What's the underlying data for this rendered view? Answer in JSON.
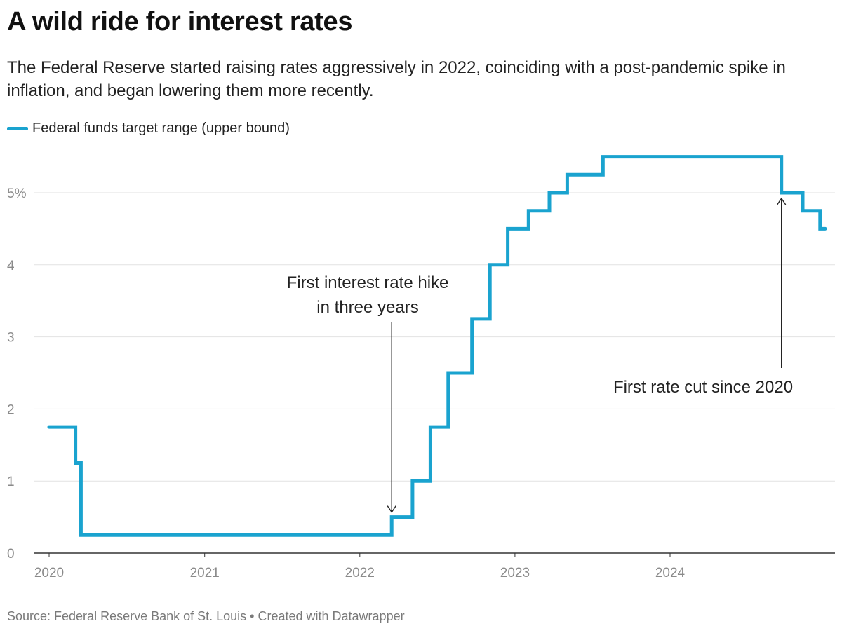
{
  "header": {
    "title": "A wild ride for interest rates",
    "subtitle": "The Federal Reserve started raising rates aggressively in 2022, coinciding with a post-pandemic spike in inflation, and began lowering them more recently."
  },
  "footer": {
    "source": "Source: Federal Reserve Bank of St. Louis • Created with Datawrapper"
  },
  "colors": {
    "series": "#1aa3cf",
    "grid": "#e2e2e2",
    "axis": "#333333",
    "tick_label": "#8a8a8a",
    "annotation": "#222222"
  },
  "chart_data": {
    "type": "line",
    "interpolation": "step-after",
    "title": "A wild ride for interest rates",
    "xlim": [
      "2020-01-01",
      "2024-12-31"
    ],
    "ylim": [
      0,
      5.6
    ],
    "grid": true,
    "legend_position": "top-left",
    "x_ticks": [
      {
        "value": "2020-01-01",
        "label": "2020"
      },
      {
        "value": "2021-01-01",
        "label": "2021"
      },
      {
        "value": "2022-01-01",
        "label": "2022"
      },
      {
        "value": "2023-01-01",
        "label": "2023"
      },
      {
        "value": "2024-01-01",
        "label": "2024"
      }
    ],
    "y_ticks": [
      {
        "value": 0,
        "label": "0"
      },
      {
        "value": 1,
        "label": "1"
      },
      {
        "value": 2,
        "label": "2"
      },
      {
        "value": 3,
        "label": "3"
      },
      {
        "value": 4,
        "label": "4"
      },
      {
        "value": 5,
        "label": "5%"
      }
    ],
    "series": [
      {
        "name": "Federal funds target range (upper bound)",
        "points": [
          {
            "x": "2020-01-01",
            "y": 1.75
          },
          {
            "x": "2020-03-03",
            "y": 1.25
          },
          {
            "x": "2020-03-16",
            "y": 0.25
          },
          {
            "x": "2022-03-17",
            "y": 0.5
          },
          {
            "x": "2022-05-05",
            "y": 1.0
          },
          {
            "x": "2022-06-16",
            "y": 1.75
          },
          {
            "x": "2022-07-28",
            "y": 2.5
          },
          {
            "x": "2022-09-22",
            "y": 3.25
          },
          {
            "x": "2022-11-03",
            "y": 4.0
          },
          {
            "x": "2022-12-15",
            "y": 4.5
          },
          {
            "x": "2023-02-02",
            "y": 4.75
          },
          {
            "x": "2023-03-23",
            "y": 5.0
          },
          {
            "x": "2023-05-04",
            "y": 5.25
          },
          {
            "x": "2023-07-27",
            "y": 5.5
          },
          {
            "x": "2024-09-19",
            "y": 5.0
          },
          {
            "x": "2024-11-08",
            "y": 4.75
          },
          {
            "x": "2024-12-19",
            "y": 4.5
          }
        ]
      }
    ],
    "annotations": [
      {
        "lines": [
          "First interest rate hike",
          "in three years"
        ],
        "target": {
          "x": "2022-03-17",
          "y": 0.5
        },
        "arrow": "down"
      },
      {
        "lines": [
          "First rate cut since 2020"
        ],
        "target": {
          "x": "2024-09-19",
          "y": 5.0
        },
        "arrow": "up"
      }
    ]
  }
}
